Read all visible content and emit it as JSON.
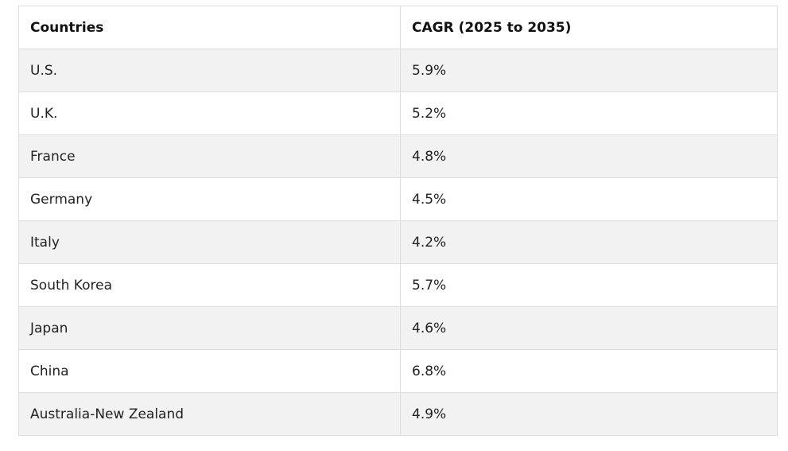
{
  "table": {
    "headers": [
      "Countries",
      "CAGR (2025 to 2035)"
    ],
    "rows": [
      [
        "U.S.",
        "5.9%"
      ],
      [
        "U.K.",
        "5.2%"
      ],
      [
        "France",
        "4.8%"
      ],
      [
        "Germany",
        "4.5%"
      ],
      [
        "Italy",
        "4.2%"
      ],
      [
        "South Korea",
        "5.7%"
      ],
      [
        "Japan",
        "4.6%"
      ],
      [
        "China",
        "6.8%"
      ],
      [
        "Australia-New Zealand",
        "4.9%"
      ]
    ]
  }
}
